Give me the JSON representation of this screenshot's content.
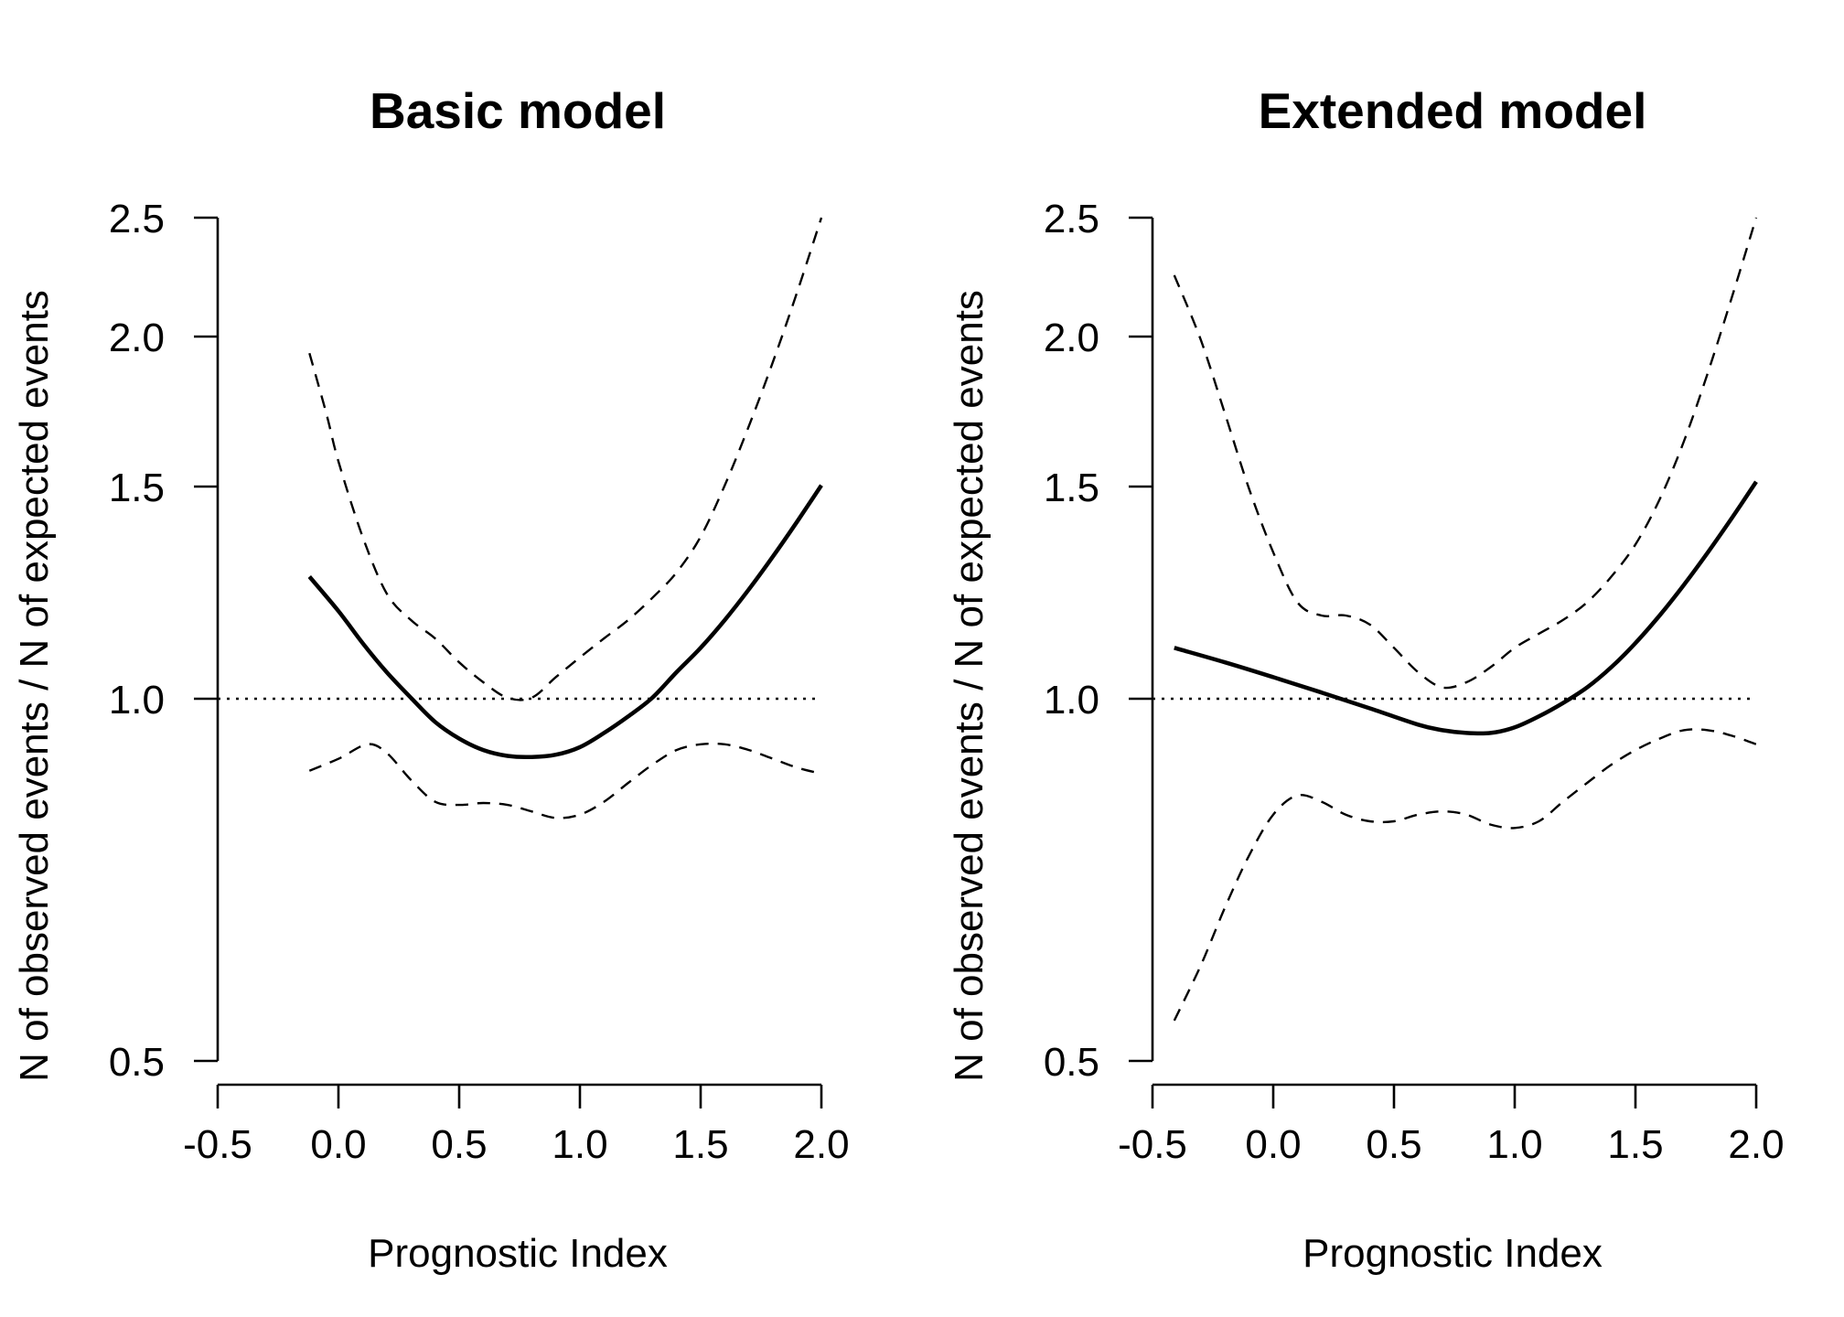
{
  "chart_data": [
    {
      "type": "line",
      "title": "Basic model",
      "xlabel": "Prognostic Index",
      "ylabel": "N of observed events / N of expected events",
      "xlim": [
        -0.5,
        2.0
      ],
      "ylim": [
        0.5,
        2.5
      ],
      "y_scale": "log",
      "xticks": [
        -0.5,
        0.0,
        0.5,
        1.0,
        1.5,
        2.0
      ],
      "xtick_labels": [
        "-0.5",
        "0.0",
        "0.5",
        "1.0",
        "1.5",
        "2.0"
      ],
      "yticks": [
        0.5,
        1.0,
        1.5,
        2.0,
        2.5
      ],
      "ytick_labels": [
        "0.5",
        "1.0",
        "1.5",
        "2.0",
        "2.5"
      ],
      "reference_line": 1.0,
      "grid": false,
      "series": [
        {
          "role": "estimate",
          "x": [
            -0.12,
            0.0,
            0.1,
            0.2,
            0.3,
            0.4,
            0.5,
            0.6,
            0.7,
            0.8,
            0.9,
            1.0,
            1.1,
            1.2,
            1.3,
            1.4,
            1.5,
            1.6,
            1.7,
            1.8,
            1.9,
            2.0
          ],
          "y": [
            1.26,
            1.18,
            1.11,
            1.05,
            1.0,
            0.955,
            0.925,
            0.905,
            0.895,
            0.893,
            0.897,
            0.91,
            0.935,
            0.965,
            1.0,
            1.05,
            1.1,
            1.16,
            1.23,
            1.31,
            1.4,
            1.5
          ]
        },
        {
          "role": "upper-bound",
          "x": [
            -0.12,
            -0.05,
            0.0,
            0.1,
            0.2,
            0.3,
            0.4,
            0.5,
            0.6,
            0.7,
            0.8,
            0.9,
            1.0,
            1.1,
            1.2,
            1.3,
            1.4,
            1.5,
            1.6,
            1.7,
            1.8,
            1.9,
            2.0
          ],
          "y": [
            1.93,
            1.72,
            1.57,
            1.36,
            1.22,
            1.16,
            1.12,
            1.07,
            1.03,
            1.0,
            1.0,
            1.04,
            1.08,
            1.12,
            1.16,
            1.21,
            1.27,
            1.36,
            1.5,
            1.68,
            1.9,
            2.17,
            2.5
          ]
        },
        {
          "role": "lower-bound",
          "x": [
            -0.12,
            0.0,
            0.12,
            0.2,
            0.3,
            0.4,
            0.5,
            0.6,
            0.7,
            0.8,
            0.9,
            1.0,
            1.1,
            1.2,
            1.3,
            1.4,
            1.5,
            1.6,
            1.7,
            1.8,
            1.9,
            2.0
          ],
          "y": [
            0.87,
            0.89,
            0.915,
            0.9,
            0.855,
            0.82,
            0.815,
            0.818,
            0.815,
            0.805,
            0.795,
            0.8,
            0.82,
            0.85,
            0.88,
            0.905,
            0.915,
            0.915,
            0.905,
            0.89,
            0.875,
            0.865
          ]
        }
      ]
    },
    {
      "type": "line",
      "title": "Extended model",
      "xlabel": "Prognostic Index",
      "ylabel": "N of observed events / N of expected events",
      "xlim": [
        -0.5,
        2.0
      ],
      "ylim": [
        0.5,
        2.5
      ],
      "y_scale": "log",
      "xticks": [
        -0.5,
        0.0,
        0.5,
        1.0,
        1.5,
        2.0
      ],
      "xtick_labels": [
        "-0.5",
        "0.0",
        "0.5",
        "1.0",
        "1.5",
        "2.0"
      ],
      "yticks": [
        0.5,
        1.0,
        1.5,
        2.0,
        2.5
      ],
      "ytick_labels": [
        "0.5",
        "1.0",
        "1.5",
        "2.0",
        "2.5"
      ],
      "reference_line": 1.0,
      "grid": false,
      "series": [
        {
          "role": "estimate",
          "x": [
            -0.41,
            -0.2,
            0.0,
            0.2,
            0.4,
            0.6,
            0.7,
            0.8,
            0.9,
            1.0,
            1.1,
            1.2,
            1.3,
            1.4,
            1.5,
            1.6,
            1.7,
            1.8,
            1.9,
            2.0
          ],
          "y": [
            1.1,
            1.07,
            1.04,
            1.01,
            0.98,
            0.95,
            0.94,
            0.935,
            0.935,
            0.945,
            0.965,
            0.99,
            1.02,
            1.06,
            1.11,
            1.17,
            1.24,
            1.32,
            1.41,
            1.51
          ]
        },
        {
          "role": "upper-bound",
          "x": [
            -0.41,
            -0.3,
            -0.2,
            -0.1,
            0.0,
            0.1,
            0.2,
            0.3,
            0.4,
            0.5,
            0.6,
            0.7,
            0.8,
            0.9,
            1.0,
            1.1,
            1.2,
            1.3,
            1.4,
            1.5,
            1.6,
            1.7,
            1.8,
            1.9,
            2.0
          ],
          "y": [
            2.24,
            1.98,
            1.72,
            1.49,
            1.32,
            1.2,
            1.17,
            1.17,
            1.15,
            1.1,
            1.05,
            1.02,
            1.03,
            1.06,
            1.1,
            1.13,
            1.16,
            1.2,
            1.26,
            1.34,
            1.46,
            1.63,
            1.86,
            2.15,
            2.5
          ]
        },
        {
          "role": "lower-bound",
          "x": [
            -0.41,
            -0.3,
            -0.2,
            -0.1,
            0.0,
            0.1,
            0.2,
            0.3,
            0.4,
            0.5,
            0.6,
            0.7,
            0.8,
            0.9,
            1.0,
            1.1,
            1.2,
            1.3,
            1.4,
            1.5,
            1.6,
            1.7,
            1.8,
            1.9,
            2.0
          ],
          "y": [
            0.54,
            0.6,
            0.67,
            0.74,
            0.8,
            0.83,
            0.82,
            0.8,
            0.79,
            0.79,
            0.8,
            0.805,
            0.8,
            0.785,
            0.78,
            0.79,
            0.82,
            0.85,
            0.88,
            0.905,
            0.925,
            0.94,
            0.94,
            0.93,
            0.915
          ]
        }
      ]
    }
  ]
}
